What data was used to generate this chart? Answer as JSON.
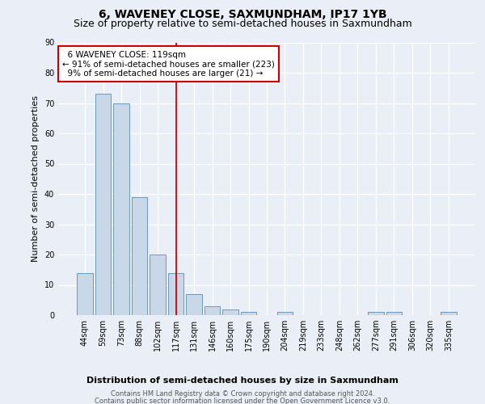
{
  "title": "6, WAVENEY CLOSE, SAXMUNDHAM, IP17 1YB",
  "subtitle": "Size of property relative to semi-detached houses in Saxmundham",
  "xlabel_dist": "Distribution of semi-detached houses by size in Saxmundham",
  "ylabel": "Number of semi-detached properties",
  "footer1": "Contains HM Land Registry data © Crown copyright and database right 2024.",
  "footer2": "Contains public sector information licensed under the Open Government Licence v3.0.",
  "categories": [
    "44sqm",
    "59sqm",
    "73sqm",
    "88sqm",
    "102sqm",
    "117sqm",
    "131sqm",
    "146sqm",
    "160sqm",
    "175sqm",
    "190sqm",
    "204sqm",
    "219sqm",
    "233sqm",
    "248sqm",
    "262sqm",
    "277sqm",
    "291sqm",
    "306sqm",
    "320sqm",
    "335sqm"
  ],
  "values": [
    14,
    73,
    70,
    39,
    20,
    14,
    7,
    3,
    2,
    1,
    0,
    1,
    0,
    0,
    0,
    0,
    1,
    1,
    0,
    0,
    1
  ],
  "bar_color": "#c8d8e8",
  "bar_edgecolor": "#5b8db0",
  "vline_x": 5,
  "vline_color": "#cc0000",
  "annotation_text": "  6 WAVENEY CLOSE: 119sqm  \n← 91% of semi-detached houses are smaller (223)\n  9% of semi-detached houses are larger (21) →",
  "annotation_box_color": "#cc0000",
  "ylim": [
    0,
    90
  ],
  "yticks": [
    0,
    10,
    20,
    30,
    40,
    50,
    60,
    70,
    80,
    90
  ],
  "bg_color": "#eaeff7",
  "plot_bg_color": "#eaeff7",
  "grid_color": "#ffffff",
  "title_fontsize": 10,
  "subtitle_fontsize": 9,
  "tick_fontsize": 7,
  "ylabel_fontsize": 8
}
